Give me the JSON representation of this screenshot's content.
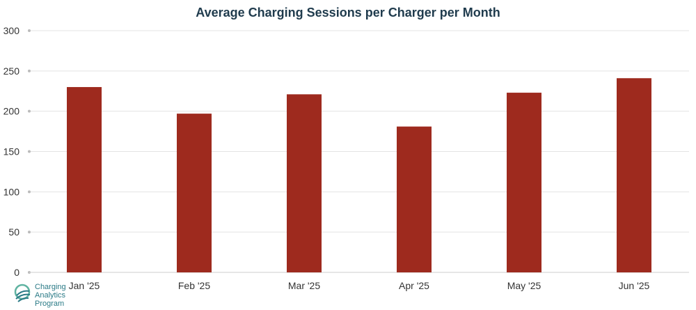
{
  "chart_data": {
    "type": "bar",
    "title": "Average Charging Sessions per Charger per Month",
    "categories": [
      "Jan '25",
      "Feb '25",
      "Mar '25",
      "Apr '25",
      "May '25",
      "Jun '25"
    ],
    "values": [
      230,
      197,
      221,
      181,
      223,
      241
    ],
    "xlabel": "",
    "ylabel": "",
    "ylim": [
      0,
      300
    ],
    "yticks": [
      0,
      50,
      100,
      150,
      200,
      250,
      300
    ],
    "grid": true,
    "colors": {
      "bar": "#9e2a1e",
      "grid": "#e3e3e3",
      "axis": "#cccccc"
    }
  },
  "logo": {
    "line1": "Charging",
    "line2": "Analytics",
    "line3": "Program"
  }
}
